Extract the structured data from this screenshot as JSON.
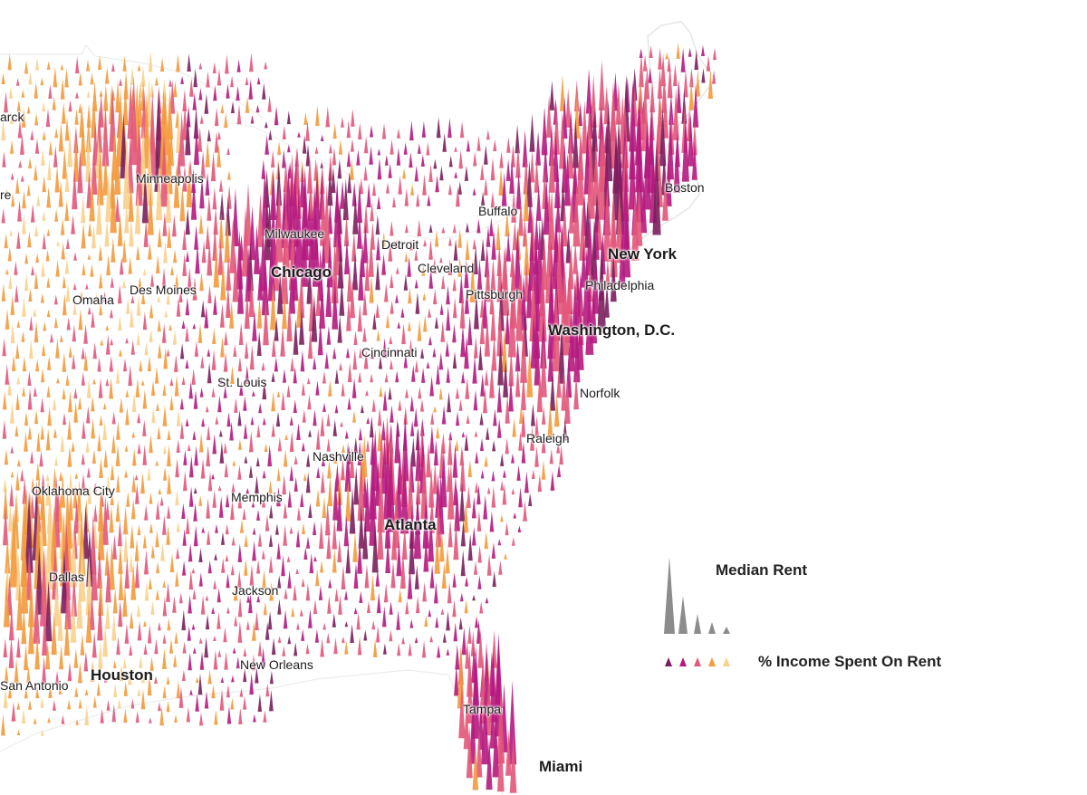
{
  "map": {
    "subject": "US median rent spike map",
    "colors": {
      "income_scale": [
        "#7a1f5c",
        "#b5197e",
        "#e2577a",
        "#f39a3c",
        "#f8d08c"
      ],
      "outline": "#e6e6e6",
      "legend_gray": "#8c8c8c",
      "label_text": "#1c1c1c"
    },
    "cities": [
      {
        "id": "bismarck",
        "label": "arck",
        "major": false
      },
      {
        "id": "pierre",
        "label": "re",
        "major": false
      },
      {
        "id": "minneapolis",
        "label": "Minneapolis",
        "major": false
      },
      {
        "id": "milwaukee",
        "label": "Milwaukee",
        "major": false
      },
      {
        "id": "chicago",
        "label": "Chicago",
        "major": true
      },
      {
        "id": "detroit",
        "label": "Detroit",
        "major": false
      },
      {
        "id": "buffalo",
        "label": "Buffalo",
        "major": false
      },
      {
        "id": "boston",
        "label": "Boston",
        "major": false
      },
      {
        "id": "new-york",
        "label": "New York",
        "major": true
      },
      {
        "id": "cleveland",
        "label": "Cleveland",
        "major": false
      },
      {
        "id": "pittsburgh",
        "label": "Pittsburgh",
        "major": false
      },
      {
        "id": "philadelphia",
        "label": "Philadelphia",
        "major": false
      },
      {
        "id": "omaha",
        "label": "Omaha",
        "major": false
      },
      {
        "id": "des-moines",
        "label": "Des Moines",
        "major": false
      },
      {
        "id": "washington-dc",
        "label": "Washington, D.C.",
        "major": true
      },
      {
        "id": "cincinnati",
        "label": "Cincinnati",
        "major": false
      },
      {
        "id": "st-louis",
        "label": "St. Louis",
        "major": false
      },
      {
        "id": "norfolk",
        "label": "Norfolk",
        "major": false
      },
      {
        "id": "raleigh",
        "label": "Raleigh",
        "major": false
      },
      {
        "id": "nashville",
        "label": "Nashville",
        "major": false
      },
      {
        "id": "oklahoma-city",
        "label": "Oklahoma City",
        "major": false
      },
      {
        "id": "memphis",
        "label": "Memphis",
        "major": false
      },
      {
        "id": "atlanta",
        "label": "Atlanta",
        "major": true
      },
      {
        "id": "dallas",
        "label": "Dallas",
        "major": false
      },
      {
        "id": "jackson",
        "label": "Jackson",
        "major": false
      },
      {
        "id": "new-orleans",
        "label": "New Orleans",
        "major": false
      },
      {
        "id": "houston",
        "label": "Houston",
        "major": true
      },
      {
        "id": "san-antonio",
        "label": "San Antonio",
        "major": false
      },
      {
        "id": "tampa",
        "label": "Tampa",
        "major": false
      },
      {
        "id": "miami",
        "label": "Miami",
        "major": true
      }
    ]
  },
  "legend": {
    "rent_title": "Median Rent",
    "income_title": "% Income Spent On Rent"
  }
}
